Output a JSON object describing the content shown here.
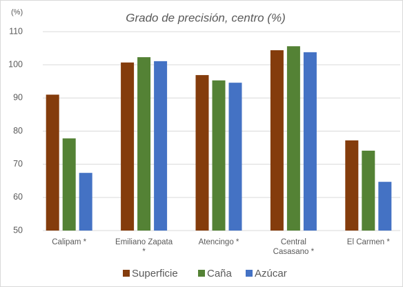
{
  "chart_data": {
    "type": "bar",
    "title": "Grado de precisión, centro (%)",
    "y_label": "(%)",
    "categories": [
      "Calipam *",
      "Emiliano Zapata\n*",
      "Atencingo *",
      "Central\nCasasano *",
      "El Carmen *"
    ],
    "series": [
      {
        "name": "Superficie",
        "color": "#843c0c",
        "values": [
          91,
          100.7,
          96.9,
          104.4,
          77.2
        ]
      },
      {
        "name": "Caña",
        "color": "#548235",
        "values": [
          77.8,
          102.3,
          95.3,
          105.6,
          74.1
        ]
      },
      {
        "name": "Azúcar",
        "color": "#4472c4",
        "values": [
          67.4,
          101.1,
          94.6,
          103.8,
          64.7
        ]
      }
    ],
    "ylim": [
      50,
      110
    ],
    "yticks": [
      50,
      60,
      70,
      80,
      90,
      100,
      110
    ],
    "grid": true,
    "legend": "bottom"
  }
}
